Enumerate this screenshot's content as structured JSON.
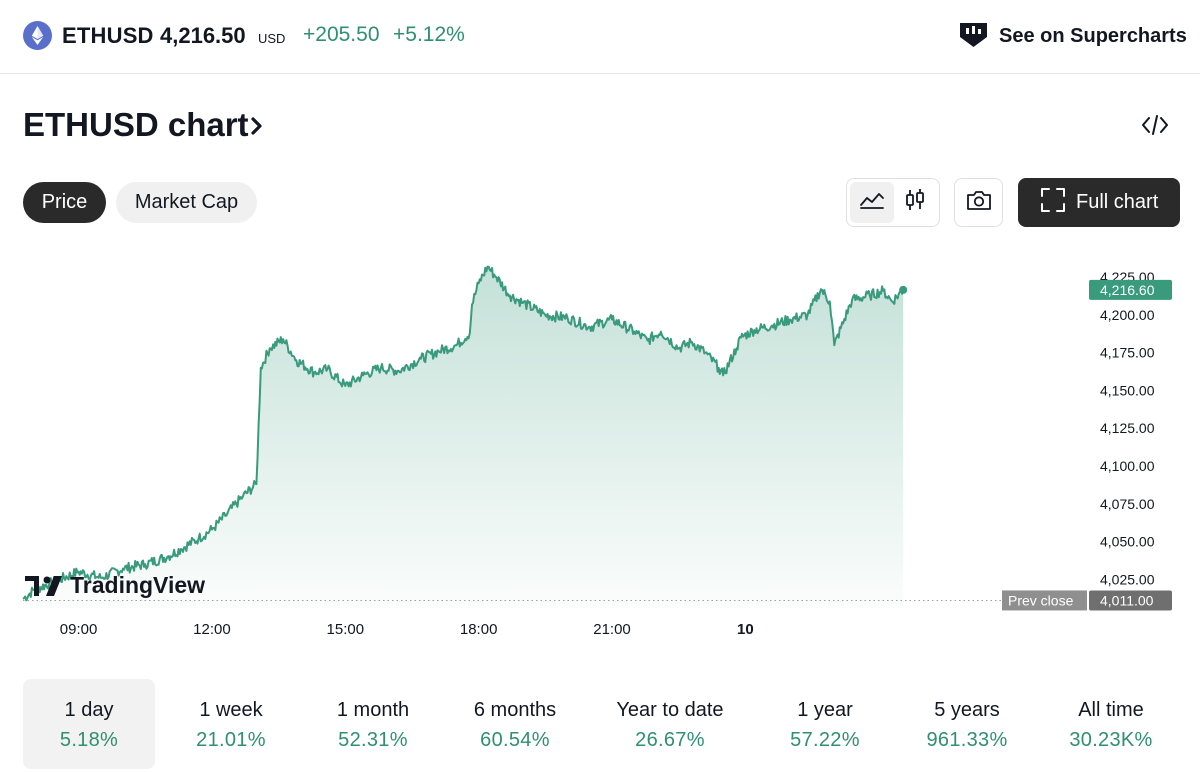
{
  "header": {
    "symbol": "ETHUSD",
    "price": "4,216.50",
    "currency": "USD",
    "change": "+205.50",
    "change_pct": "+5.12%",
    "supercharts_label": "See on Supercharts",
    "icons": [
      "ethereum-icon",
      "tradingview-logo-icon"
    ]
  },
  "title": {
    "text": "ETHUSD chart",
    "chevron_icon": "chevron-right-icon"
  },
  "embed_icon": "code-icon",
  "tabs": {
    "price": "Price",
    "market_cap": "Market Cap",
    "selected": "Price"
  },
  "toolbar": {
    "line_icon": "area-chart-icon",
    "candle_icon": "candlestick-icon",
    "camera_icon": "camera-icon",
    "fullscreen_icon": "fullscreen-icon",
    "full_chart_label": "Full chart"
  },
  "colors": {
    "up": "#2f8f70",
    "line": "#3a9a7c",
    "dark": "#2a2a2a"
  },
  "watermark": "TradingView",
  "chart_data": {
    "type": "area",
    "y_ticks": [
      "4,225.00",
      "4,200.00",
      "4,175.00",
      "4,150.00",
      "4,125.00",
      "4,100.00",
      "4,075.00",
      "4,050.00",
      "4,025.00"
    ],
    "x_ticks": [
      "09:00",
      "12:00",
      "15:00",
      "18:00",
      "21:00",
      "10"
    ],
    "last_price_label": "4,216.60",
    "prev_close_label": "Prev close",
    "prev_close_value_label": "4,011.00",
    "prev_close": 4011,
    "ylim": [
      4006,
      4243
    ],
    "xlim": [
      7.75,
      31.55
    ],
    "grid": false,
    "series": [
      {
        "x": [
          7.75,
          8.0,
          8.5,
          9.0,
          9.5,
          10.0,
          10.5,
          11.0,
          11.3,
          11.7,
          12.0,
          12.3,
          12.7,
          13.0,
          13.1,
          13.3,
          13.6,
          13.9,
          14.3,
          14.6,
          15.0,
          15.4,
          15.8,
          16.2,
          16.7,
          17.1,
          17.5,
          17.8,
          17.85,
          18.0,
          18.2,
          18.4,
          18.7,
          19.0,
          19.5,
          20.0,
          20.5,
          21.0,
          21.5,
          21.8,
          22.1,
          22.5,
          22.8,
          23.1,
          23.4,
          23.5,
          23.8,
          23.9,
          24.2,
          24.6,
          25.0,
          25.4,
          25.7,
          25.9,
          26.0,
          26.4,
          26.8,
          27.1,
          27.3,
          27.55
        ],
        "y": [
          4012,
          4018,
          4024,
          4030,
          4026,
          4032,
          4035,
          4040,
          4045,
          4052,
          4058,
          4067,
          4080,
          4088,
          4165,
          4178,
          4184,
          4170,
          4162,
          4164,
          4153,
          4160,
          4165,
          4163,
          4171,
          4176,
          4180,
          4188,
          4207,
          4221,
          4232,
          4225,
          4213,
          4208,
          4200,
          4198,
          4192,
          4197,
          4189,
          4183,
          4189,
          4178,
          4182,
          4175,
          4165,
          4160,
          4178,
          4185,
          4190,
          4193,
          4197,
          4200,
          4217,
          4209,
          4180,
          4210,
          4213,
          4216,
          4209,
          4216.6
        ]
      }
    ]
  },
  "periods": [
    {
      "label": "1 day",
      "value": "5.18%"
    },
    {
      "label": "1 week",
      "value": "21.01%"
    },
    {
      "label": "1 month",
      "value": "52.31%"
    },
    {
      "label": "6 months",
      "value": "60.54%"
    },
    {
      "label": "Year to date",
      "value": "26.67%"
    },
    {
      "label": "1 year",
      "value": "57.22%"
    },
    {
      "label": "5 years",
      "value": "961.33%"
    },
    {
      "label": "All time",
      "value": "30.23K%"
    }
  ],
  "selected_period": "1 day"
}
